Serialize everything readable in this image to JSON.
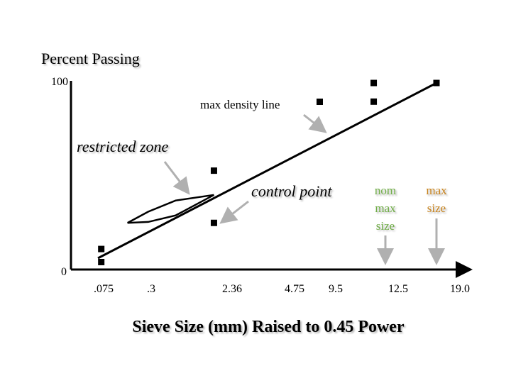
{
  "chart_data": {
    "type": "line",
    "title": "Percent Passing",
    "xlabel": "Sieve Size (mm) Raised to 0.45 Power",
    "ylabel": "",
    "ylim": [
      0,
      100
    ],
    "y_ticks": [
      "100",
      "0"
    ],
    "x_ticks": [
      {
        "label": ".075",
        "pos": 0.075
      },
      {
        "label": ".3",
        "pos": 0.3
      },
      {
        "label": "2.36",
        "pos": 2.36
      },
      {
        "label": "4.75",
        "pos": 4.75
      },
      {
        "label": "9.5",
        "pos": 9.5
      },
      {
        "label": "12.5",
        "pos": 12.5
      },
      {
        "label": "19.0",
        "pos": 19.0
      }
    ],
    "x_scale": "power-0.45",
    "max_density_line": [
      [
        0,
        0
      ],
      [
        19.0,
        100
      ]
    ],
    "restricted_zone": {
      "upper": [
        [
          0.3,
          25
        ],
        [
          0.6,
          31
        ],
        [
          1.18,
          37
        ],
        [
          2.36,
          40
        ]
      ],
      "lower": [
        [
          0.3,
          25
        ],
        [
          0.6,
          25.5
        ],
        [
          1.18,
          29
        ],
        [
          2.36,
          40
        ]
      ]
    },
    "control_points": [
      {
        "x": 0.075,
        "y": 4
      },
      {
        "x": 0.075,
        "y": 11
      },
      {
        "x": 2.36,
        "y": 25
      },
      {
        "x": 2.36,
        "y": 53
      },
      {
        "x": 12.5,
        "y": 90
      },
      {
        "x": 12.5,
        "y": 100
      },
      {
        "x": 19.0,
        "y": 100
      }
    ],
    "annotations": {
      "max_density_line": "max density line",
      "restricted_zone": "restricted zone",
      "control_point": "control point",
      "nom_max_size": [
        "nom",
        "max",
        "size"
      ],
      "max_size": [
        "max",
        "size"
      ]
    },
    "colors": {
      "axis": "#000000",
      "nom_max_label": "#70ad47",
      "max_size_label": "#c8841f",
      "arrow": "#b0b0b0"
    },
    "grid": false
  }
}
